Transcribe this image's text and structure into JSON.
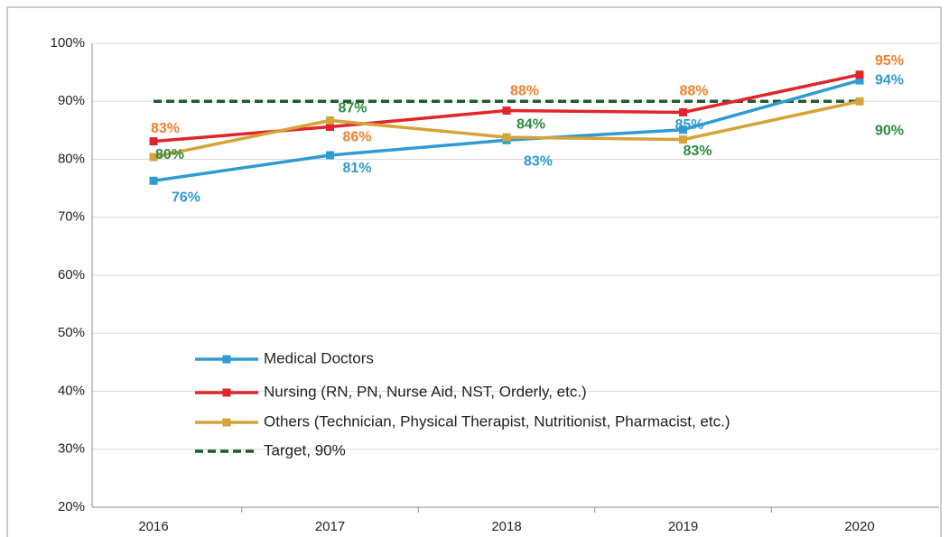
{
  "chart_data": {
    "type": "line",
    "categories": [
      "2016",
      "2017",
      "2018",
      "2019",
      "2020"
    ],
    "series": [
      {
        "name": "Medical Doctors",
        "color": "#2f9bd0",
        "label_color": "#2f9bd0",
        "marker": "square",
        "values": [
          76.3,
          80.7,
          83.3,
          85.1,
          93.6
        ],
        "value_labels": [
          "76%",
          "81%",
          "83%",
          "85%",
          "94%"
        ]
      },
      {
        "name": "Nursing (RN, PN, Nurse Aid, NST, Orderly, etc.)",
        "color": "#e0262b",
        "label_color": "#f0802e",
        "marker": "square",
        "values": [
          83.1,
          85.6,
          88.4,
          88.1,
          94.6
        ],
        "value_labels": [
          "83%",
          "86%",
          "88%",
          "88%",
          "95%"
        ]
      },
      {
        "name": "Others (Technician, Physical Therapist, Nutritionist, Pharmacist, etc.)",
        "color": "#d4a33a",
        "label_color": "#2e8b3e",
        "marker": "square",
        "values": [
          80.4,
          86.7,
          83.8,
          83.4,
          90.0
        ],
        "value_labels": [
          "80%",
          "87%",
          "84%",
          "83%",
          "90%"
        ]
      },
      {
        "name": "Target, 90%",
        "color": "#1e5a2a",
        "dashed": true,
        "values": [
          90,
          90,
          90,
          90,
          90
        ]
      }
    ],
    "ylim": [
      20,
      100
    ],
    "yticks": [
      {
        "value": 20,
        "label": "20%"
      },
      {
        "value": 30,
        "label": "30%"
      },
      {
        "value": 40,
        "label": "40%"
      },
      {
        "value": 50,
        "label": "50%"
      },
      {
        "value": 60,
        "label": "60%"
      },
      {
        "value": 70,
        "label": "70%"
      },
      {
        "value": 80,
        "label": "80%"
      },
      {
        "value": 90,
        "label": "90%"
      },
      {
        "value": 100,
        "label": "100%"
      }
    ],
    "grid": true,
    "legend": "lower left"
  }
}
